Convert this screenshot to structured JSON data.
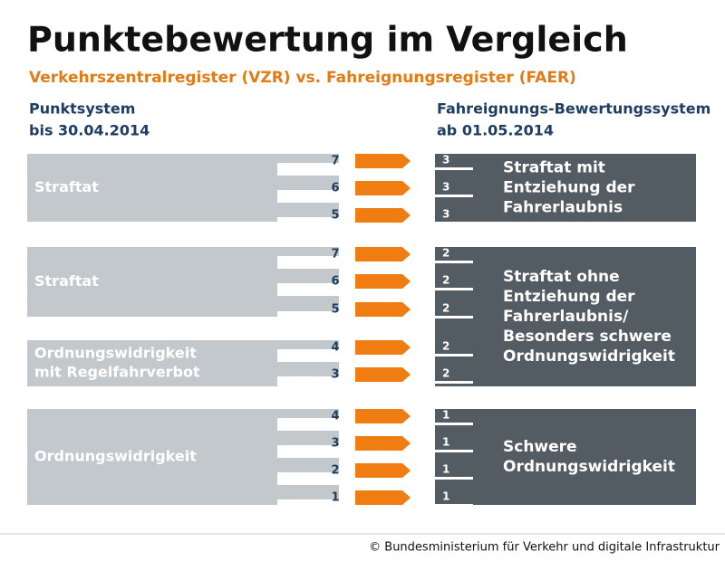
{
  "header": {
    "title": "Punktebewertung im Vergleich",
    "subtitle": "Verkehrszentralregister (VZR) vs. Fahreignungsregister (FAER)"
  },
  "left_header": {
    "line1": "Punktsystem",
    "line2": "bis 30.04.2014"
  },
  "right_header": {
    "line1": "Fahreignungs-Bewertungssystem",
    "line2": "ab 01.05.2014"
  },
  "rows": [
    {
      "old": "7",
      "new": "3"
    },
    {
      "old": "6",
      "new": "3"
    },
    {
      "old": "5",
      "new": "3"
    },
    {
      "old": "7",
      "new": "2"
    },
    {
      "old": "6",
      "new": "2"
    },
    {
      "old": "5",
      "new": "2"
    },
    {
      "old": "4",
      "new": "2"
    },
    {
      "old": "3",
      "new": "2"
    },
    {
      "old": "4",
      "new": "1"
    },
    {
      "old": "3",
      "new": "1"
    },
    {
      "old": "2",
      "new": "1"
    },
    {
      "old": "1",
      "new": "1"
    }
  ],
  "left_groups": [
    {
      "lines": [
        "Straftat"
      ]
    },
    {
      "lines": [
        "Straftat"
      ]
    },
    {
      "lines": [
        "Ordnungswidrigkeit",
        "mit Regelfahrverbot"
      ]
    },
    {
      "lines": [
        "Ordnungswidrigkeit"
      ]
    }
  ],
  "right_groups": [
    {
      "lines": [
        "Straftat mit",
        "Entziehung der",
        "Fahrerlaubnis"
      ]
    },
    {
      "lines": [
        "Straftat ohne",
        "Entziehung der",
        "Fahrerlaubnis/",
        "Besonders schwere",
        "Ordnungswidrigkeit"
      ]
    },
    {
      "lines": [
        "Schwere",
        "Ordnungswidrigkeit"
      ]
    }
  ],
  "footer": "© Bundesministerium für Verkehr und digitale Infrastruktur"
}
